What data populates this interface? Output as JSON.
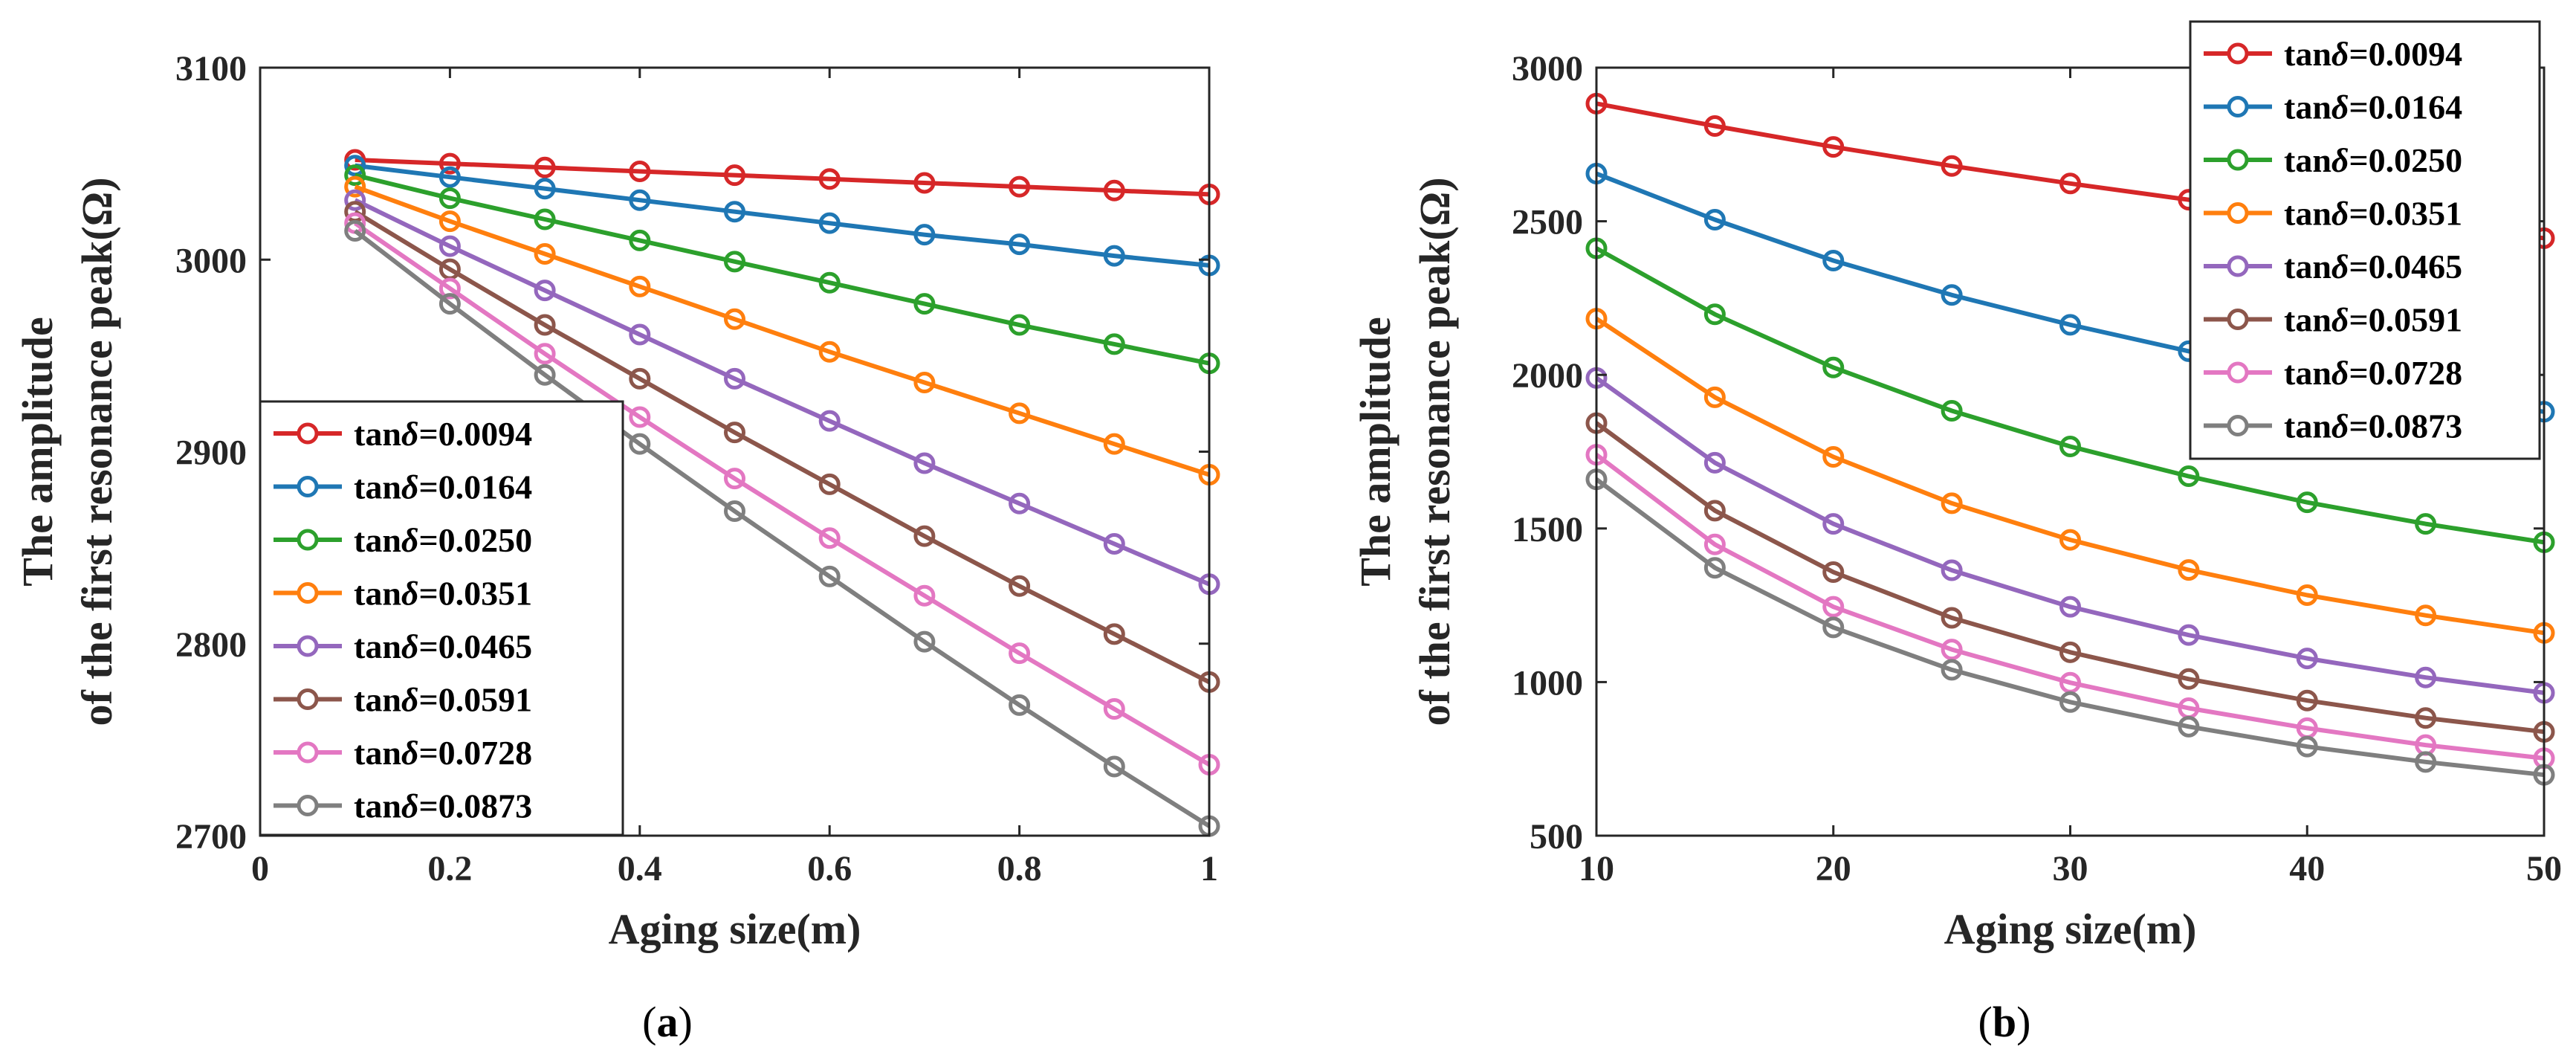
{
  "chart_data": [
    {
      "type": "line",
      "panel_label": "a",
      "xlabel": "Aging size(m)",
      "ylabel": [
        "The amplitude",
        "of the first resonance peak(Ω)"
      ],
      "xlim": [
        0,
        1
      ],
      "ylim": [
        2700,
        3100
      ],
      "xticks": [
        0,
        0.2,
        0.4,
        0.6,
        0.8,
        1
      ],
      "xtick_labels": [
        "0",
        "0.2",
        "0.4",
        "0.6",
        "0.8",
        "1"
      ],
      "yticks": [
        2700,
        2800,
        2900,
        3000,
        3100
      ],
      "ytick_labels": [
        "2700",
        "2800",
        "2900",
        "3000",
        "3100"
      ],
      "legend_position": "lower-left",
      "marker": "circle",
      "x": [
        0.1,
        0.2,
        0.3,
        0.4,
        0.5,
        0.6,
        0.7,
        0.8,
        0.9,
        1.0
      ],
      "series": [
        {
          "name": "tanδ=0.0094",
          "label_prefix": "tan",
          "label_symbol": "δ",
          "label_value": "=0.0094",
          "color": "#D62728",
          "values": [
            3052,
            3050,
            3048,
            3046,
            3044,
            3042,
            3040,
            3038,
            3036,
            3034
          ]
        },
        {
          "name": "tanδ=0.0164",
          "label_prefix": "tan",
          "label_symbol": "δ",
          "label_value": "=0.0164",
          "color": "#1F77B4",
          "values": [
            3049,
            3043,
            3037,
            3031,
            3025,
            3019,
            3013,
            3008,
            3002,
            2997
          ]
        },
        {
          "name": "tanδ=0.0250",
          "label_prefix": "tan",
          "label_symbol": "δ",
          "label_value": "=0.0250",
          "color": "#2CA02C",
          "values": [
            3044,
            3032,
            3021,
            3010,
            2999,
            2988,
            2977,
            2966,
            2956,
            2946
          ]
        },
        {
          "name": "tanδ=0.0351",
          "label_prefix": "tan",
          "label_symbol": "δ",
          "label_value": "=0.0351",
          "color": "#FF7F0E",
          "values": [
            3038,
            3020,
            3003,
            2986,
            2969,
            2952,
            2936,
            2920,
            2904,
            2888
          ]
        },
        {
          "name": "tanδ=0.0465",
          "label_prefix": "tan",
          "label_symbol": "δ",
          "label_value": "=0.0465",
          "color": "#9467BD",
          "values": [
            3031,
            3007,
            2984,
            2961,
            2938,
            2916,
            2894,
            2873,
            2852,
            2831
          ]
        },
        {
          "name": "tanδ=0.0591",
          "label_prefix": "tan",
          "label_symbol": "δ",
          "label_value": "=0.0591",
          "color": "#8C564B",
          "values": [
            3025,
            2995,
            2966,
            2938,
            2910,
            2883,
            2856,
            2830,
            2805,
            2780
          ]
        },
        {
          "name": "tanδ=0.0728",
          "label_prefix": "tan",
          "label_symbol": "δ",
          "label_value": "=0.0728",
          "color": "#E377C2",
          "values": [
            3019,
            2985,
            2951,
            2918,
            2886,
            2855,
            2825,
            2795,
            2766,
            2737
          ]
        },
        {
          "name": "tanδ=0.0873",
          "label_prefix": "tan",
          "label_symbol": "δ",
          "label_value": "=0.0873",
          "color": "#7F7F7F",
          "values": [
            3015,
            2977,
            2940,
            2904,
            2869,
            2835,
            2801,
            2768,
            2736,
            2705
          ]
        }
      ]
    },
    {
      "type": "line",
      "panel_label": "b",
      "xlabel": "Aging size(m)",
      "ylabel": [
        "The amplitude",
        "of the first resonance peak(Ω)"
      ],
      "xlim": [
        10,
        50
      ],
      "ylim": [
        500,
        3000
      ],
      "xticks": [
        10,
        20,
        30,
        40,
        50
      ],
      "xtick_labels": [
        "10",
        "20",
        "30",
        "40",
        "50"
      ],
      "yticks": [
        500,
        1000,
        1500,
        2000,
        2500,
        3000
      ],
      "ytick_labels": [
        "500",
        "1000",
        "1500",
        "2000",
        "2500",
        "3000"
      ],
      "legend_position": "top-right",
      "marker": "circle",
      "x": [
        10,
        15,
        20,
        25,
        30,
        35,
        40,
        45,
        50
      ],
      "series": [
        {
          "name": "tanδ=0.0094",
          "label_prefix": "tan",
          "label_symbol": "δ",
          "label_value": "=0.0094",
          "color": "#D62728",
          "values": [
            2883,
            2810,
            2742,
            2680,
            2623,
            2570,
            2525,
            2483,
            2445
          ]
        },
        {
          "name": "tanδ=0.0164",
          "label_prefix": "tan",
          "label_symbol": "δ",
          "label_value": "=0.0164",
          "color": "#1F77B4",
          "values": [
            2655,
            2505,
            2372,
            2260,
            2163,
            2077,
            2000,
            1935,
            1880
          ]
        },
        {
          "name": "tanδ=0.0250",
          "label_prefix": "tan",
          "label_symbol": "δ",
          "label_value": "=0.0250",
          "color": "#2CA02C",
          "values": [
            2412,
            2197,
            2024,
            1883,
            1767,
            1670,
            1585,
            1515,
            1455
          ]
        },
        {
          "name": "tanδ=0.0351",
          "label_prefix": "tan",
          "label_symbol": "δ",
          "label_value": "=0.0351",
          "color": "#FF7F0E",
          "values": [
            2183,
            1927,
            1733,
            1582,
            1463,
            1365,
            1283,
            1217,
            1160
          ]
        },
        {
          "name": "tanδ=0.0465",
          "label_prefix": "tan",
          "label_symbol": "δ",
          "label_value": "=0.0465",
          "color": "#9467BD",
          "values": [
            1990,
            1714,
            1515,
            1364,
            1245,
            1153,
            1077,
            1015,
            965
          ]
        },
        {
          "name": "tanδ=0.0591",
          "label_prefix": "tan",
          "label_symbol": "δ",
          "label_value": "=0.0591",
          "color": "#8C564B",
          "values": [
            1843,
            1558,
            1358,
            1209,
            1097,
            1010,
            940,
            883,
            838
          ]
        },
        {
          "name": "tanδ=0.0728",
          "label_prefix": "tan",
          "label_symbol": "δ",
          "label_value": "=0.0728",
          "color": "#E377C2",
          "values": [
            1740,
            1448,
            1245,
            1106,
            998,
            915,
            850,
            795,
            752
          ]
        },
        {
          "name": "tanδ=0.0873",
          "label_prefix": "tan",
          "label_symbol": "δ",
          "label_value": "=0.0873",
          "color": "#7F7F7F",
          "values": [
            1660,
            1372,
            1178,
            1040,
            935,
            855,
            790,
            740,
            698
          ]
        }
      ]
    }
  ]
}
